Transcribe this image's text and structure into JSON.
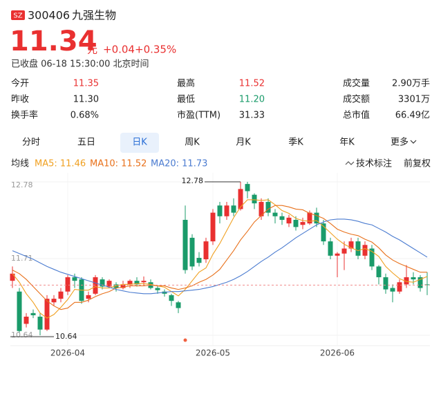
{
  "header": {
    "exchange": "SZ",
    "code": "300406",
    "name": "九强生物",
    "price": "11.34",
    "unit": "元",
    "change": "+0.04",
    "change_pct": "+0.35%",
    "status": "已收盘 06-18 15:30:00 北京时间"
  },
  "stats": [
    [
      {
        "label": "今开",
        "value": "11.35",
        "color": "#e93030"
      },
      {
        "label": "最高",
        "value": "11.52",
        "color": "#e93030"
      },
      {
        "label": "成交量",
        "value": "2.90万手",
        "color": "#222222"
      }
    ],
    [
      {
        "label": "昨收",
        "value": "11.30",
        "color": "#222222"
      },
      {
        "label": "最低",
        "value": "11.20",
        "color": "#1a9b6a"
      },
      {
        "label": "成交额",
        "value": "3301万",
        "color": "#222222"
      }
    ],
    [
      {
        "label": "换手率",
        "value": "0.68%",
        "color": "#222222"
      },
      {
        "label": "市盈(TTM)",
        "value": "31.33",
        "color": "#222222"
      },
      {
        "label": "总市值",
        "value": "66.49亿",
        "color": "#222222"
      }
    ]
  ],
  "tabs": {
    "items": [
      "分时",
      "五日",
      "日K",
      "周K",
      "月K",
      "季K",
      "年K",
      "更多"
    ],
    "active": 2
  },
  "toolbar": {
    "ma_title": "均线",
    "ma_legend": [
      "MA5: 11.46",
      "MA10: 11.52",
      "MA20: 11.73"
    ],
    "tech": "技术标注",
    "adjust": "前复权"
  },
  "chart_data": {
    "type": "candlestick",
    "categories": [
      null,
      null,
      null,
      null,
      null,
      null,
      null,
      null,
      "2026-04",
      null,
      null,
      null,
      null,
      null,
      null,
      null,
      null,
      null,
      null,
      null,
      null,
      null,
      null,
      null,
      null,
      null,
      null,
      null,
      null,
      "2026-05",
      null,
      null,
      null,
      null,
      null,
      null,
      null,
      null,
      null,
      null,
      null,
      null,
      null,
      null,
      null,
      null,
      null,
      "2026-06",
      null,
      null,
      null,
      null,
      null,
      null,
      null,
      null,
      null,
      null,
      null,
      null,
      null
    ],
    "open": [
      11.4,
      11.25,
      10.8,
      10.95,
      10.9,
      10.72,
      11.1,
      11.15,
      11.25,
      11.45,
      11.42,
      11.15,
      11.22,
      11.42,
      11.32,
      11.35,
      11.3,
      11.35,
      11.4,
      11.38,
      11.38,
      11.3,
      11.25,
      11.2,
      11.1,
      12.25,
      12.0,
      11.72,
      11.7,
      11.95,
      12.45,
      12.3,
      12.45,
      12.4,
      12.75,
      12.6,
      12.3,
      12.5,
      12.35,
      12.3,
      12.2,
      12.25,
      12.18,
      12.2,
      12.35,
      12.2,
      11.95,
      11.75,
      11.78,
      11.85,
      11.95,
      11.75,
      11.85,
      11.6,
      11.45,
      11.3,
      11.25,
      11.35,
      11.45,
      11.45,
      11.35
    ],
    "close": [
      11.5,
      10.7,
      10.9,
      10.92,
      10.72,
      11.15,
      11.15,
      11.25,
      11.45,
      11.4,
      11.12,
      11.2,
      11.45,
      11.32,
      11.4,
      11.3,
      11.35,
      11.4,
      11.35,
      11.4,
      11.3,
      11.27,
      11.22,
      11.12,
      11.02,
      11.55,
      11.6,
      11.65,
      11.95,
      12.35,
      12.3,
      12.45,
      12.35,
      12.68,
      12.65,
      12.48,
      12.5,
      12.35,
      12.3,
      12.25,
      12.28,
      12.15,
      12.22,
      12.35,
      12.2,
      11.95,
      11.75,
      11.78,
      11.85,
      11.95,
      11.75,
      11.9,
      11.6,
      11.45,
      11.28,
      11.25,
      11.38,
      11.45,
      11.42,
      11.3,
      11.34
    ],
    "high": [
      11.6,
      11.3,
      10.95,
      11.0,
      10.95,
      11.2,
      11.2,
      11.3,
      11.48,
      11.5,
      11.45,
      11.25,
      11.48,
      11.45,
      11.42,
      11.38,
      11.4,
      11.42,
      11.45,
      11.46,
      11.42,
      11.33,
      11.28,
      11.22,
      11.12,
      12.45,
      12.05,
      11.8,
      12.0,
      12.4,
      12.5,
      12.5,
      12.55,
      12.78,
      12.78,
      12.62,
      12.55,
      12.55,
      12.4,
      12.35,
      12.32,
      12.3,
      12.28,
      12.38,
      12.42,
      12.25,
      12.0,
      11.8,
      11.95,
      12.0,
      12.0,
      11.95,
      11.9,
      11.62,
      11.5,
      11.35,
      11.42,
      11.62,
      11.52,
      11.48,
      11.52
    ],
    "low": [
      11.3,
      10.68,
      10.75,
      10.88,
      10.64,
      10.7,
      11.05,
      11.1,
      11.2,
      11.3,
      11.08,
      11.1,
      11.2,
      11.28,
      11.3,
      11.25,
      11.28,
      11.3,
      11.32,
      11.33,
      11.28,
      11.22,
      11.18,
      11.05,
      10.95,
      11.5,
      11.55,
      11.6,
      11.65,
      11.9,
      12.2,
      12.25,
      12.3,
      12.38,
      12.55,
      12.4,
      12.25,
      12.3,
      12.2,
      12.18,
      12.15,
      12.1,
      12.12,
      12.18,
      12.15,
      11.9,
      11.7,
      11.45,
      11.55,
      11.8,
      11.7,
      11.7,
      11.55,
      11.35,
      11.22,
      11.1,
      11.22,
      11.3,
      11.35,
      11.25,
      11.2
    ],
    "up_color": "#e93030",
    "down_color": "#1a9b6a",
    "series": [
      {
        "name": "MA5",
        "color": "#f0a020",
        "values": [
          11.5,
          11.38,
          11.22,
          11.1,
          10.95,
          10.88,
          10.93,
          11.03,
          11.14,
          11.28,
          11.27,
          11.27,
          11.32,
          11.3,
          11.3,
          11.33,
          11.35,
          11.35,
          11.36,
          11.36,
          11.35,
          11.33,
          11.31,
          11.25,
          11.19,
          11.28,
          11.4,
          11.52,
          11.58,
          11.77,
          11.92,
          12.1,
          12.28,
          12.43,
          12.53,
          12.53,
          12.52,
          12.53,
          12.46,
          12.38,
          12.34,
          12.27,
          12.24,
          12.23,
          12.24,
          12.16,
          12.07,
          11.98,
          11.91,
          11.86,
          11.82,
          11.85,
          11.81,
          11.74,
          11.6,
          11.51,
          11.43,
          11.39,
          11.38,
          11.42,
          11.46
        ]
      },
      {
        "name": "MA10",
        "color": "#e8701a",
        "values": [
          11.55,
          11.5,
          11.42,
          11.32,
          11.22,
          11.12,
          11.05,
          11.0,
          11.02,
          11.1,
          11.1,
          11.13,
          11.18,
          11.22,
          11.25,
          11.3,
          11.31,
          11.33,
          11.33,
          11.33,
          11.34,
          11.33,
          11.33,
          11.3,
          11.28,
          11.3,
          11.33,
          11.38,
          11.42,
          11.48,
          11.56,
          11.69,
          11.82,
          11.97,
          12.09,
          12.22,
          12.31,
          12.4,
          12.45,
          12.45,
          12.43,
          12.4,
          12.39,
          12.34,
          12.31,
          12.27,
          12.2,
          12.12,
          12.08,
          12.05,
          12.03,
          11.98,
          11.94,
          11.86,
          11.76,
          11.69,
          11.64,
          11.6,
          11.56,
          11.52,
          11.52
        ]
      },
      {
        "name": "MA20",
        "color": "#4a7bd0",
        "values": [
          11.82,
          11.78,
          11.74,
          11.7,
          11.65,
          11.6,
          11.56,
          11.52,
          11.49,
          11.46,
          11.43,
          11.4,
          11.37,
          11.34,
          11.31,
          11.28,
          11.26,
          11.24,
          11.23,
          11.22,
          11.22,
          11.23,
          11.24,
          11.25,
          11.25,
          11.26,
          11.27,
          11.28,
          11.3,
          11.32,
          11.35,
          11.38,
          11.42,
          11.47,
          11.53,
          11.6,
          11.67,
          11.73,
          11.8,
          11.86,
          11.93,
          12.0,
          12.06,
          12.12,
          12.18,
          12.22,
          12.25,
          12.26,
          12.26,
          12.25,
          12.23,
          12.2,
          12.18,
          12.13,
          12.08,
          12.02,
          11.97,
          11.91,
          11.85,
          11.79,
          11.73
        ]
      }
    ],
    "ylim": [
      10.64,
      12.78
    ],
    "yticks": [
      12.78,
      11.71,
      10.64
    ],
    "annotations": [
      12.78,
      10.64
    ]
  }
}
